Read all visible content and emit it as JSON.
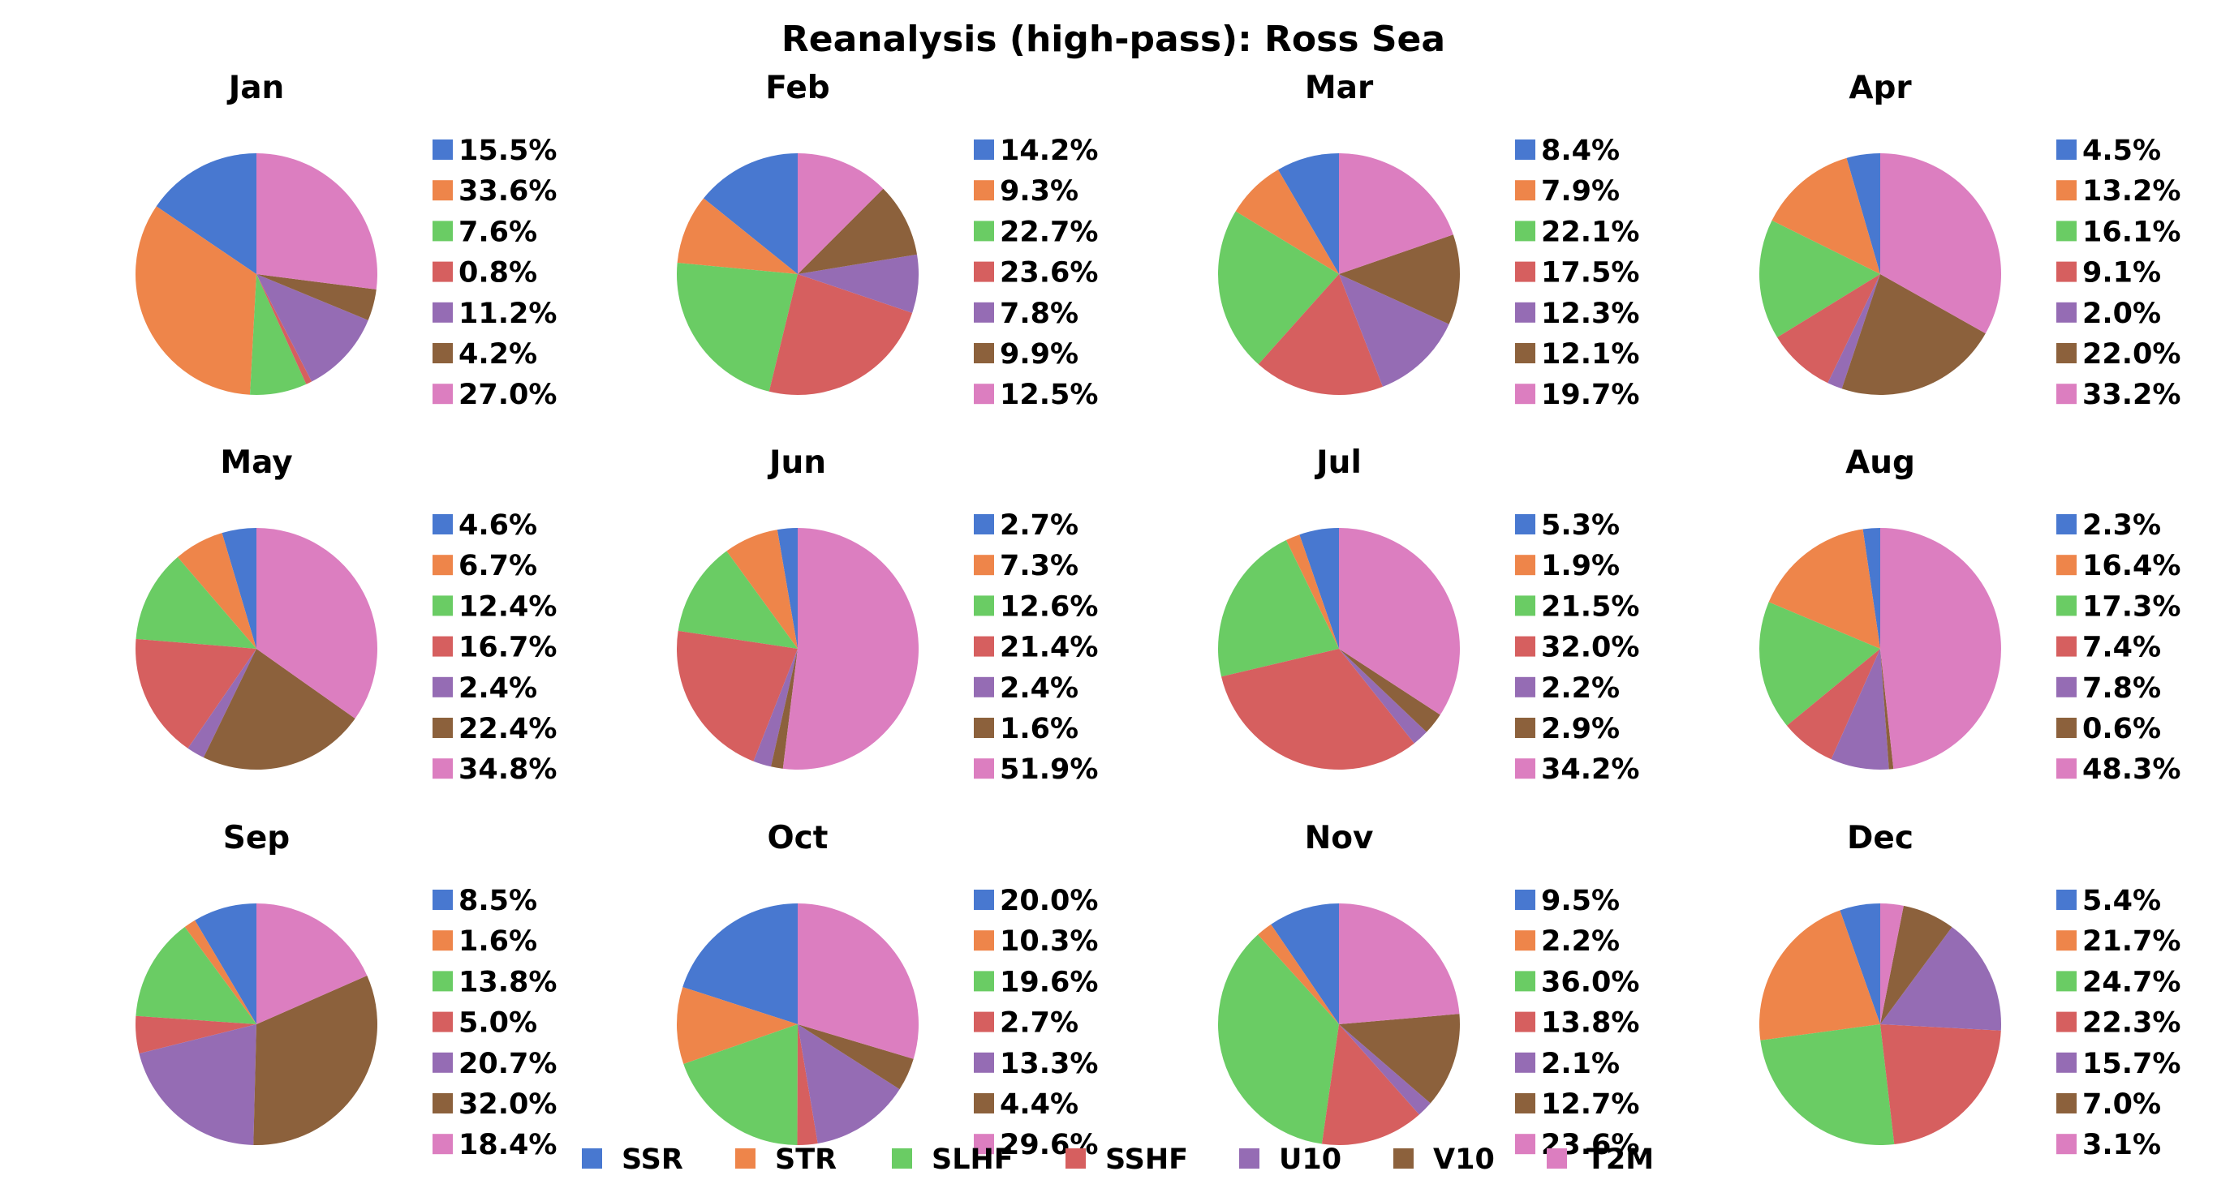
{
  "chart_data": {
    "type": "pie",
    "title": "Reanalysis (high-pass): Ross Sea",
    "legend": {
      "placement": "bottom-center",
      "entries": [
        "SSR",
        "STR",
        "SLHF",
        "SSHF",
        "U10",
        "V10",
        "T2M"
      ]
    },
    "colors": [
      "#4878d0",
      "#ee854a",
      "#6acc64",
      "#d65f5f",
      "#956cb4",
      "#8c613c",
      "#dc7ec0"
    ],
    "slice_order": [
      "SSR",
      "STR",
      "SLHF",
      "SSHF",
      "U10",
      "V10",
      "T2M"
    ],
    "charts": [
      {
        "title": "Jan",
        "values": [
          15.5,
          33.6,
          7.6,
          0.8,
          11.2,
          4.2,
          27.0
        ],
        "labels": [
          "15.5%",
          "33.6%",
          "7.6%",
          "0.8%",
          "11.2%",
          "4.2%",
          "27.0%"
        ]
      },
      {
        "title": "Feb",
        "values": [
          14.2,
          9.3,
          22.7,
          23.6,
          7.8,
          9.9,
          12.5
        ],
        "labels": [
          "14.2%",
          "9.3%",
          "22.7%",
          "23.6%",
          "7.8%",
          "9.9%",
          "12.5%"
        ]
      },
      {
        "title": "Mar",
        "values": [
          8.4,
          7.9,
          22.1,
          17.5,
          12.3,
          12.1,
          19.7
        ],
        "labels": [
          "8.4%",
          "7.9%",
          "22.1%",
          "17.5%",
          "12.3%",
          "12.1%",
          "19.7%"
        ]
      },
      {
        "title": "Apr",
        "values": [
          4.5,
          13.2,
          16.1,
          9.1,
          2.0,
          22.0,
          33.2
        ],
        "labels": [
          "4.5%",
          "13.2%",
          "16.1%",
          "9.1%",
          "2.0%",
          "22.0%",
          "33.2%"
        ]
      },
      {
        "title": "May",
        "values": [
          4.6,
          6.7,
          12.4,
          16.7,
          2.4,
          22.4,
          34.8
        ],
        "labels": [
          "4.6%",
          "6.7%",
          "12.4%",
          "16.7%",
          "2.4%",
          "22.4%",
          "34.8%"
        ]
      },
      {
        "title": "Jun",
        "values": [
          2.7,
          7.3,
          12.6,
          21.4,
          2.4,
          1.6,
          51.9
        ],
        "labels": [
          "2.7%",
          "7.3%",
          "12.6%",
          "21.4%",
          "2.4%",
          "1.6%",
          "51.9%"
        ]
      },
      {
        "title": "Jul",
        "values": [
          5.3,
          1.9,
          21.5,
          32.0,
          2.2,
          2.9,
          34.2
        ],
        "labels": [
          "5.3%",
          "1.9%",
          "21.5%",
          "32.0%",
          "2.2%",
          "2.9%",
          "34.2%"
        ]
      },
      {
        "title": "Aug",
        "values": [
          2.3,
          16.4,
          17.3,
          7.4,
          7.8,
          0.6,
          48.3
        ],
        "labels": [
          "2.3%",
          "16.4%",
          "17.3%",
          "7.4%",
          "7.8%",
          "0.6%",
          "48.3%"
        ]
      },
      {
        "title": "Sep",
        "values": [
          8.5,
          1.6,
          13.8,
          5.0,
          20.7,
          32.0,
          18.4
        ],
        "labels": [
          "8.5%",
          "1.6%",
          "13.8%",
          "5.0%",
          "20.7%",
          "32.0%",
          "18.4%"
        ]
      },
      {
        "title": "Oct",
        "values": [
          20.0,
          10.3,
          19.6,
          2.7,
          13.3,
          4.4,
          29.6
        ],
        "labels": [
          "20.0%",
          "10.3%",
          "19.6%",
          "2.7%",
          "13.3%",
          "4.4%",
          "29.6%"
        ]
      },
      {
        "title": "Nov",
        "values": [
          9.5,
          2.2,
          36.0,
          13.8,
          2.1,
          12.7,
          23.6
        ],
        "labels": [
          "9.5%",
          "2.2%",
          "36.0%",
          "13.8%",
          "2.1%",
          "12.7%",
          "23.6%"
        ]
      },
      {
        "title": "Dec",
        "values": [
          5.4,
          21.7,
          24.7,
          22.3,
          15.7,
          7.0,
          3.1
        ],
        "labels": [
          "5.4%",
          "21.7%",
          "24.7%",
          "22.3%",
          "15.7%",
          "7.0%",
          "3.1%"
        ]
      }
    ]
  }
}
